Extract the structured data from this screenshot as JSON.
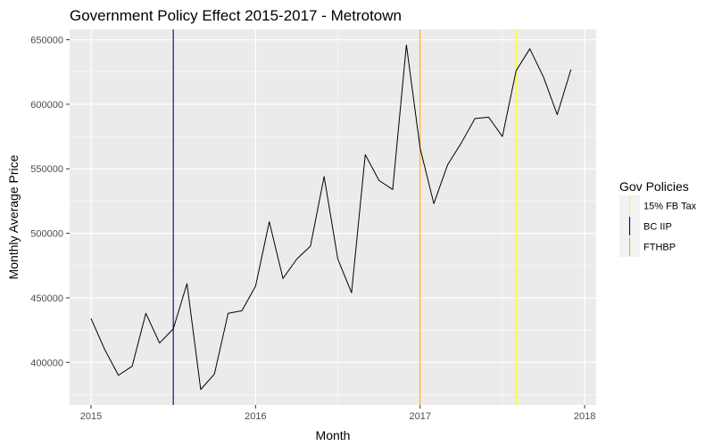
{
  "chart_data": {
    "type": "line",
    "title": "Government Policy Effect 2015-2017 - Metrotown",
    "xlabel": "Month",
    "ylabel": "Monthly Average Price",
    "xlim": [
      2014.87,
      2018.07
    ],
    "ylim": [
      367000,
      658000
    ],
    "x_ticks": [
      {
        "value": 2015,
        "label": "2015"
      },
      {
        "value": 2016,
        "label": "2016"
      },
      {
        "value": 2017,
        "label": "2017"
      },
      {
        "value": 2018,
        "label": "2018"
      }
    ],
    "y_ticks": [
      {
        "value": 400000,
        "label": "400000"
      },
      {
        "value": 450000,
        "label": "450000"
      },
      {
        "value": 500000,
        "label": "500000"
      },
      {
        "value": 550000,
        "label": "550000"
      },
      {
        "value": 600000,
        "label": "600000"
      },
      {
        "value": 650000,
        "label": "650000"
      }
    ],
    "grid": true,
    "series": [
      {
        "color": "#000000",
        "points": [
          {
            "x": "2015-01",
            "y": 434000
          },
          {
            "x": "2015-02",
            "y": 410000
          },
          {
            "x": "2015-03",
            "y": 390000
          },
          {
            "x": "2015-04",
            "y": 397000
          },
          {
            "x": "2015-05",
            "y": 438000
          },
          {
            "x": "2015-06",
            "y": 415000
          },
          {
            "x": "2015-07",
            "y": 426000
          },
          {
            "x": "2015-08",
            "y": 461000
          },
          {
            "x": "2015-09",
            "y": 379000
          },
          {
            "x": "2015-10",
            "y": 391000
          },
          {
            "x": "2015-11",
            "y": 438000
          },
          {
            "x": "2015-12",
            "y": 440000
          },
          {
            "x": "2016-01",
            "y": 459000
          },
          {
            "x": "2016-02",
            "y": 509000
          },
          {
            "x": "2016-03",
            "y": 465000
          },
          {
            "x": "2016-04",
            "y": 480000
          },
          {
            "x": "2016-05",
            "y": 490000
          },
          {
            "x": "2016-06",
            "y": 544000
          },
          {
            "x": "2016-07",
            "y": 480000
          },
          {
            "x": "2016-08",
            "y": 454000
          },
          {
            "x": "2016-09",
            "y": 561000
          },
          {
            "x": "2016-10",
            "y": 541000
          },
          {
            "x": "2016-11",
            "y": 534000
          },
          {
            "x": "2016-12",
            "y": 646000
          },
          {
            "x": "2017-01",
            "y": 566000
          },
          {
            "x": "2017-02",
            "y": 523000
          },
          {
            "x": "2017-03",
            "y": 553000
          },
          {
            "x": "2017-04",
            "y": 570000
          },
          {
            "x": "2017-05",
            "y": 589000
          },
          {
            "x": "2017-06",
            "y": 590000
          },
          {
            "x": "2017-07",
            "y": 575000
          },
          {
            "x": "2017-08",
            "y": 626000
          },
          {
            "x": "2017-09",
            "y": 643000
          },
          {
            "x": "2017-10",
            "y": 621000
          },
          {
            "x": "2017-11",
            "y": 592000
          },
          {
            "x": "2017-12",
            "y": 627000
          }
        ]
      }
    ],
    "policy_lines": [
      {
        "name": "15% FB Tax",
        "x": "2017-08",
        "color": "#ffff00"
      },
      {
        "name": "BC IIP",
        "x": "2015-07",
        "color": "#00008b"
      },
      {
        "name": "FTHBP",
        "x": "2017-01",
        "color": "#ffa500"
      }
    ],
    "legend": {
      "title": "Gov Policies",
      "position": "right"
    },
    "panel_color": "#ebebeb",
    "grid_color": "#ffffff"
  }
}
